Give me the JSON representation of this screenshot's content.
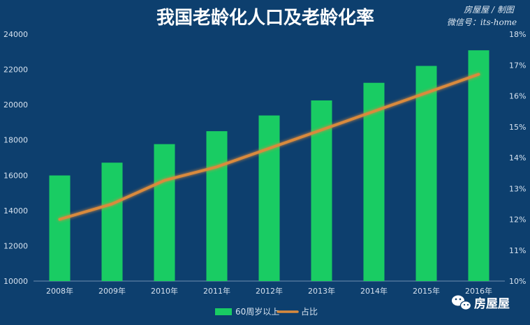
{
  "credit": {
    "line1": "房屋屋 / 制图",
    "line2": "微信号：its-home"
  },
  "brand": {
    "icon": "wechat-icon",
    "name": "房屋屋"
  },
  "chart_data": {
    "type": "bar+line",
    "title": "我国老龄化人口及老龄化率",
    "categories": [
      "2008年",
      "2009年",
      "2010年",
      "2011年",
      "2012年",
      "2013年",
      "2014年",
      "2015年",
      "2016年"
    ],
    "series": [
      {
        "name": "60周岁以上",
        "type": "bar",
        "axis": "left",
        "color": "#19cc63",
        "values": [
          15989,
          16714,
          17765,
          18499,
          19390,
          20243,
          21242,
          22200,
          23086
        ]
      },
      {
        "name": "占比",
        "type": "line",
        "axis": "right",
        "color": "#d98a3d",
        "values": [
          12.0,
          12.5,
          13.26,
          13.7,
          14.3,
          14.9,
          15.5,
          16.1,
          16.7
        ]
      }
    ],
    "y_left": {
      "min": 10000,
      "max": 24000,
      "ticks": [
        10000,
        12000,
        14000,
        16000,
        18000,
        20000,
        22000,
        24000
      ]
    },
    "y_right": {
      "min": 10,
      "max": 18,
      "ticks": [
        "10%",
        "11%",
        "12%",
        "13%",
        "14%",
        "15%",
        "16%",
        "17%",
        "18%"
      ]
    },
    "grid": false,
    "legend": "bottom"
  }
}
